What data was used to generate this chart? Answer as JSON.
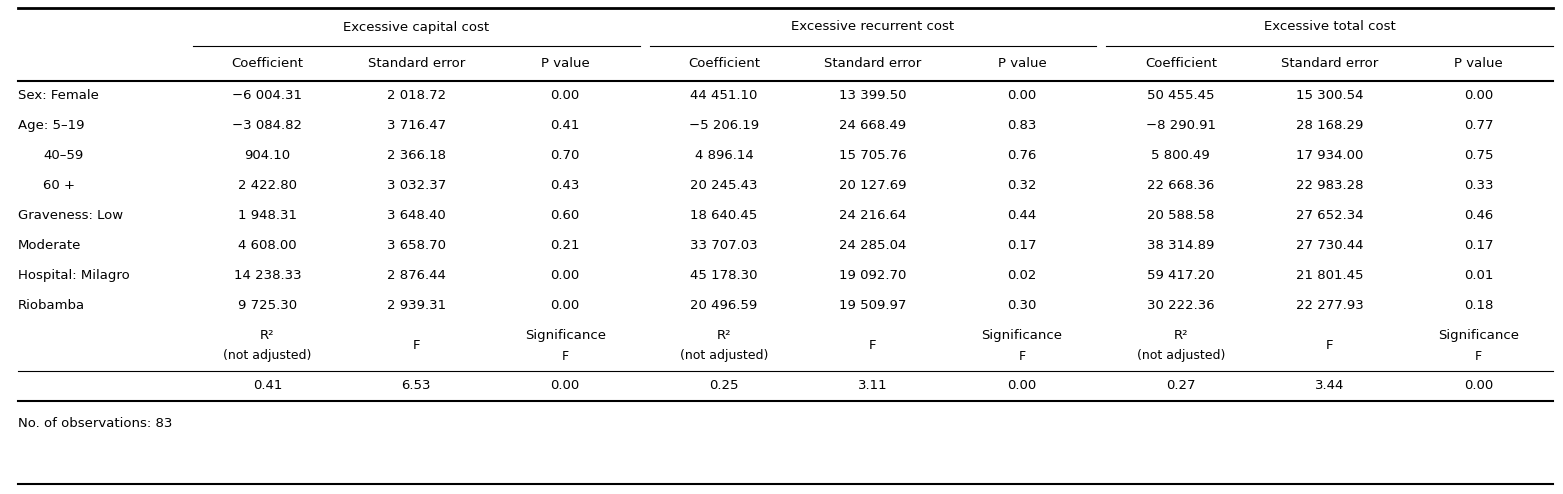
{
  "bg_color": "#ffffff",
  "group_headers": [
    "Excessive capital cost",
    "Excessive recurrent cost",
    "Excessive total cost"
  ],
  "sub_headers": [
    "Coefficient",
    "Standard error",
    "P value",
    "Coefficient",
    "Standard error",
    "P value",
    "Coefficient",
    "Standard error",
    "P value"
  ],
  "row_labels": [
    "Sex: Female",
    "Age: 5–19",
    "40–59",
    "60 +",
    "Graveness: Low",
    "Moderate",
    "Hospital: Milagro",
    "Riobamba"
  ],
  "row_indent": [
    false,
    false,
    true,
    true,
    false,
    false,
    false,
    false
  ],
  "data": [
    [
      "−6 004.31",
      "2 018.72",
      "0.00",
      "44 451.10",
      "13 399.50",
      "0.00",
      "50 455.45",
      "15 300.54",
      "0.00"
    ],
    [
      "−3 084.82",
      "3 716.47",
      "0.41",
      "−5 206.19",
      "24 668.49",
      "0.83",
      "−8 290.91",
      "28 168.29",
      "0.77"
    ],
    [
      "904.10",
      "2 366.18",
      "0.70",
      "4 896.14",
      "15 705.76",
      "0.76",
      "5 800.49",
      "17 934.00",
      "0.75"
    ],
    [
      "2 422.80",
      "3 032.37",
      "0.43",
      "20 245.43",
      "20 127.69",
      "0.32",
      "22 668.36",
      "22 983.28",
      "0.33"
    ],
    [
      "1 948.31",
      "3 648.40",
      "0.60",
      "18 640.45",
      "24 216.64",
      "0.44",
      "20 588.58",
      "27 652.34",
      "0.46"
    ],
    [
      "4 608.00",
      "3 658.70",
      "0.21",
      "33 707.03",
      "24 285.04",
      "0.17",
      "38 314.89",
      "27 730.44",
      "0.17"
    ],
    [
      "14 238.33",
      "2 876.44",
      "0.00",
      "45 178.30",
      "19 092.70",
      "0.02",
      "59 417.20",
      "21 801.45",
      "0.01"
    ],
    [
      "9 725.30",
      "2 939.31",
      "0.00",
      "20 496.59",
      "19 509.97",
      "0.30",
      "30 222.36",
      "22 277.93",
      "0.18"
    ]
  ],
  "footer_stat_labels": [
    "R²\n(not adjusted)",
    "F",
    "Significance\nF"
  ],
  "footer_vals": [
    "0.41",
    "6.53",
    "0.00",
    "0.25",
    "3.11",
    "0.00",
    "0.27",
    "3.44",
    "0.00"
  ],
  "footnote": "No. of observations: 83"
}
